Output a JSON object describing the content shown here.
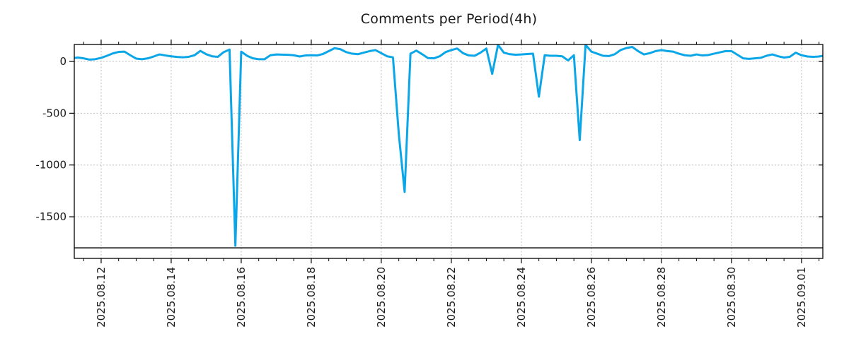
{
  "title": "Comments per Period(4h)",
  "chart_data": {
    "type": "line",
    "title": "Comments per Period(4h)",
    "series_name": "comments-per-4h",
    "line_color": "#0ba6e8",
    "baseline_color": "#000000",
    "grid_color": "#bdbdbd",
    "axis_color": "#000000",
    "text_color": "#1a1a1a",
    "grid": true,
    "legend": "none",
    "start": "2025-08-11 04:00",
    "interval_hours": 4,
    "values": [
      30,
      38,
      30,
      18,
      22,
      35,
      55,
      78,
      92,
      95,
      60,
      28,
      22,
      30,
      48,
      68,
      58,
      50,
      44,
      40,
      45,
      60,
      102,
      70,
      50,
      45,
      90,
      115,
      -1780,
      95,
      55,
      30,
      22,
      22,
      60,
      68,
      66,
      64,
      60,
      48,
      58,
      60,
      58,
      72,
      100,
      128,
      118,
      90,
      75,
      70,
      85,
      100,
      110,
      80,
      50,
      40,
      -700,
      -1260,
      75,
      105,
      70,
      33,
      30,
      50,
      90,
      110,
      125,
      80,
      58,
      55,
      85,
      125,
      -120,
      160,
      85,
      70,
      65,
      68,
      72,
      75,
      -340,
      60,
      55,
      55,
      50,
      10,
      60,
      -760,
      160,
      95,
      75,
      55,
      52,
      70,
      110,
      130,
      140,
      100,
      68,
      80,
      100,
      110,
      100,
      95,
      75,
      60,
      55,
      68,
      58,
      62,
      75,
      88,
      100,
      100,
      65,
      30,
      25,
      30,
      35,
      55,
      68,
      50,
      38,
      45,
      85,
      60,
      48,
      45,
      48,
      58
    ],
    "x_ticks": [
      {
        "label": "2025.08.12",
        "hours": 0
      },
      {
        "label": "2025.08.14",
        "hours": 48
      },
      {
        "label": "2025.08.16",
        "hours": 96
      },
      {
        "label": "2025.08.18",
        "hours": 144
      },
      {
        "label": "2025.08.20",
        "hours": 192
      },
      {
        "label": "2025.08.22",
        "hours": 240
      },
      {
        "label": "2025.08.24",
        "hours": 288
      },
      {
        "label": "2025.08.26",
        "hours": 336
      },
      {
        "label": "2025.08.28",
        "hours": 384
      },
      {
        "label": "2025.08.30",
        "hours": 432
      },
      {
        "label": "2025.09.01",
        "hours": 480
      }
    ],
    "minor_tick_hours": 12,
    "y_ticks": [
      0,
      -500,
      -1000,
      -1500
    ],
    "xlim_hours": [
      -18.4,
      494.6
    ],
    "ylim": [
      -1902,
      164
    ],
    "baseline_value": -1800,
    "xlabel": "",
    "ylabel": ""
  }
}
